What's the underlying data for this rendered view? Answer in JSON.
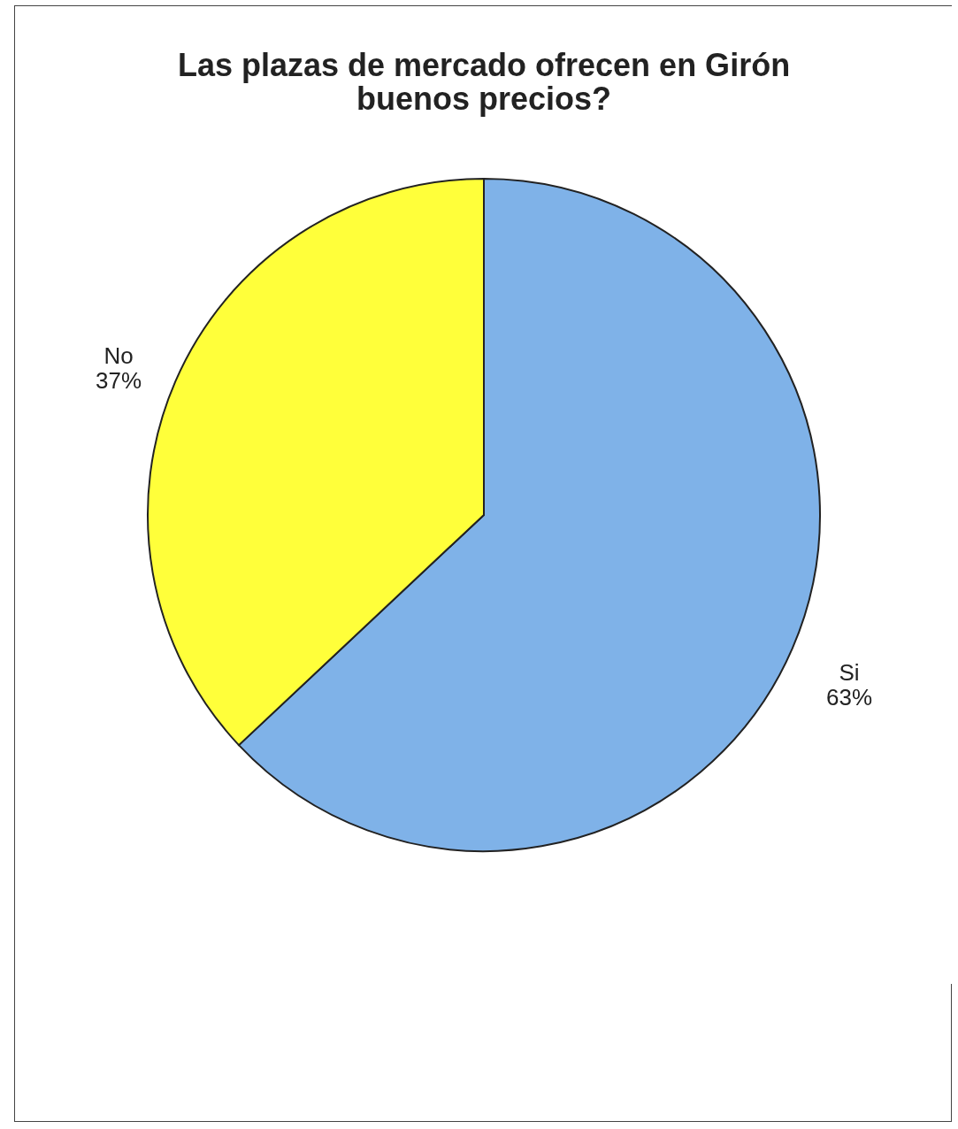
{
  "chart_data": {
    "type": "pie",
    "title": "Las plazas de mercado ofrecen en Girón buenos precios?",
    "categories": [
      "Si",
      "No"
    ],
    "values": [
      63,
      37
    ],
    "colors": [
      "#7fb2e8",
      "#ffff3a"
    ],
    "value_labels": [
      "63%",
      "37%"
    ],
    "legend": false
  }
}
